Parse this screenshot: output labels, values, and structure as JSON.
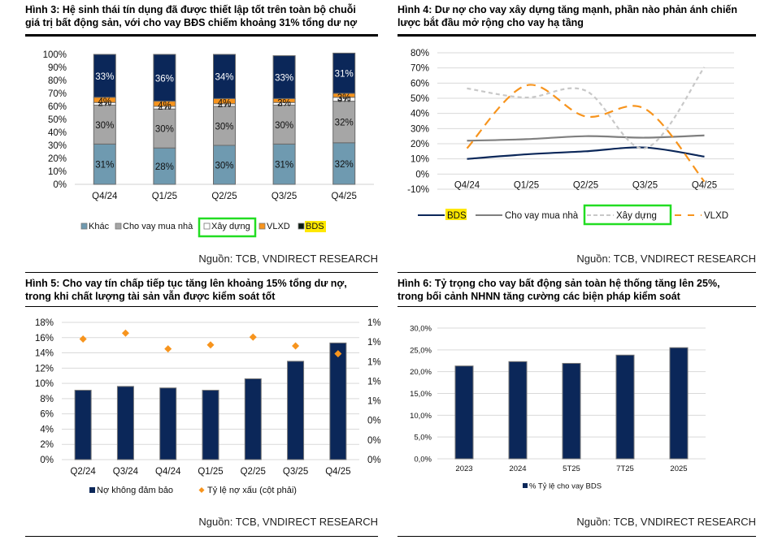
{
  "source_label": "Nguồn: TCB, VNDIRECT RESEARCH",
  "colors": {
    "navy": "#0b2759",
    "steel": "#6f9ab0",
    "grey": "#a6a6a6",
    "orange": "#f7941d",
    "white": "#ffffff",
    "darkgrey": "#7f7f7f",
    "lightgrey": "#c8c8c8",
    "highlight_green": "#22dd22",
    "highlight_yellow": "#ffe800"
  },
  "chart_data": [
    {
      "id": "fig3",
      "type": "bar",
      "stacked": true,
      "title": "Hình 3: Hệ sinh thái tín dụng đã được thiết lập tốt trên toàn bộ chuỗi giá trị bất động sản, với cho vay BĐS chiếm khoảng 31% tổng dư nợ",
      "title_lines": [
        "Hình 3: Hệ sinh thái tín dụng đã được thiết lập tốt trên toàn bộ chuỗi",
        "giá trị bất động sản, với cho vay BĐS chiếm khoảng 31% tổng dư nợ"
      ],
      "categories": [
        "Q4/24",
        "Q1/25",
        "Q2/25",
        "Q3/25",
        "Q4/25"
      ],
      "yticks": [
        "0%",
        "10%",
        "20%",
        "30%",
        "40%",
        "50%",
        "60%",
        "70%",
        "80%",
        "90%",
        "100%"
      ],
      "ylim": [
        0,
        100
      ],
      "series": [
        {
          "name": "Khác",
          "values": [
            31,
            28,
            30,
            31,
            32
          ],
          "labels": [
            "31%",
            "28%",
            "30%",
            "31%",
            "32%"
          ]
        },
        {
          "name": "Cho vay mua nhà",
          "values": [
            30,
            30,
            30,
            30,
            32
          ],
          "labels": [
            "30%",
            "30%",
            "30%",
            "30%",
            "32%"
          ]
        },
        {
          "name": "Xây dựng",
          "values": [
            2,
            2,
            2,
            2,
            3
          ],
          "labels": [
            "2%",
            "2%",
            "2%",
            "2%",
            "3%"
          ]
        },
        {
          "name": "VLXD",
          "values": [
            4,
            4,
            4,
            3,
            3
          ],
          "labels": [
            "4%",
            "4%",
            "4%",
            "3%",
            "3%"
          ]
        },
        {
          "name": "BDS",
          "values": [
            33,
            36,
            34,
            33,
            31
          ],
          "labels": [
            "33%",
            "36%",
            "34%",
            "33%",
            "31%"
          ]
        }
      ],
      "legend": [
        "Khác",
        "Cho vay mua nhà",
        "Xây dựng",
        "VLXD",
        "BDS"
      ],
      "legend_position": "bottom"
    },
    {
      "id": "fig4",
      "type": "line",
      "title": "Hình 4: Dư nợ cho vay xây dựng tăng mạnh, phần nào phản ánh chiến lược bắt đầu mở rộng cho vay hạ tầng",
      "title_lines": [
        "Hình 4: Dư nợ cho vay xây dựng tăng mạnh, phần nào phản ánh chiến",
        "lược bắt đầu mở rộng cho vay hạ tầng"
      ],
      "categories": [
        "Q4/24",
        "Q1/25",
        "Q2/25",
        "Q3/25",
        "Q4/25"
      ],
      "yticks": [
        "-10%",
        "0%",
        "10%",
        "20%",
        "30%",
        "40%",
        "50%",
        "60%",
        "70%",
        "80%"
      ],
      "ylim": [
        -10,
        80
      ],
      "series": [
        {
          "name": "BDS",
          "values": [
            10,
            13,
            15,
            17.5,
            11.5
          ]
        },
        {
          "name": "Cho vay mua nhà",
          "values": [
            22,
            23,
            25,
            24,
            25.5
          ]
        },
        {
          "name": "Xây dựng",
          "values": [
            56.5,
            50.5,
            55,
            17,
            70.5
          ]
        },
        {
          "name": "VLXD",
          "values": [
            17,
            58.5,
            38,
            43,
            -5
          ]
        }
      ],
      "legend": [
        "BDS",
        "Cho vay mua nhà",
        "Xây dựng",
        "VLXD"
      ],
      "legend_position": "bottom"
    },
    {
      "id": "fig5",
      "type": "bar",
      "title": "Hình 5: Cho vay tín chấp tiếp tục tăng lên khoảng 15% tổng dư nợ, trong khi chất lượng tài sản vẫn được kiểm soát tốt",
      "title_lines": [
        "Hình 5: Cho vay tín chấp tiếp tục tăng lên khoảng 15% tổng dư nợ,",
        "trong khi chất lượng tài sản vẫn được kiểm soát tốt"
      ],
      "categories": [
        "Q2/24",
        "Q3/24",
        "Q4/24",
        "Q1/25",
        "Q2/25",
        "Q3/25",
        "Q4/25"
      ],
      "yticks": [
        "0%",
        "2%",
        "4%",
        "6%",
        "8%",
        "10%",
        "12%",
        "14%",
        "16%",
        "18%"
      ],
      "ylim": [
        0,
        18
      ],
      "y2ticks": [
        "0%",
        "0%",
        "0%",
        "1%",
        "1%",
        "1%",
        "1%",
        "1%"
      ],
      "y2lim": [
        0,
        1.4
      ],
      "series": [
        {
          "name": "Nợ không đảm bảo",
          "axis": "left",
          "type": "bar",
          "values": [
            9.1,
            9.6,
            9.4,
            9.1,
            10.6,
            12.9,
            15.3
          ]
        },
        {
          "name": "Tỷ lệ nợ xấu (cột phải)",
          "axis": "right",
          "type": "scatter",
          "values": [
            1.23,
            1.29,
            1.13,
            1.17,
            1.25,
            1.16,
            1.08
          ]
        }
      ],
      "legend": [
        "Nợ không đảm bảo",
        "Tỷ lệ nợ xấu (cột phải)"
      ],
      "legend_position": "bottom"
    },
    {
      "id": "fig6",
      "type": "bar",
      "title": "Hình 6: Tỷ trọng cho vay bất động sản toàn hệ thống tăng lên 25%, trong bối cảnh NHNN tăng cường các biện pháp kiểm soát",
      "title_lines": [
        "Hình 6: Tỷ trọng cho vay bất động sản toàn hệ thống tăng lên 25%,",
        "trong bối cảnh NHNN tăng cường các biện pháp kiểm soát"
      ],
      "categories": [
        "2023",
        "2024",
        "5T25",
        "7T25",
        "2025"
      ],
      "yticks": [
        "0,0%",
        "5,0%",
        "10,0%",
        "15,0%",
        "20,0%",
        "25,0%",
        "30,0%"
      ],
      "ylim": [
        0,
        30
      ],
      "series": [
        {
          "name": "% Tỷ lệ cho vay BDS",
          "values": [
            21.3,
            22.3,
            21.9,
            23.8,
            25.5
          ]
        }
      ],
      "legend": [
        "% Tỷ lệ cho vay BDS"
      ],
      "legend_position": "bottom"
    }
  ]
}
